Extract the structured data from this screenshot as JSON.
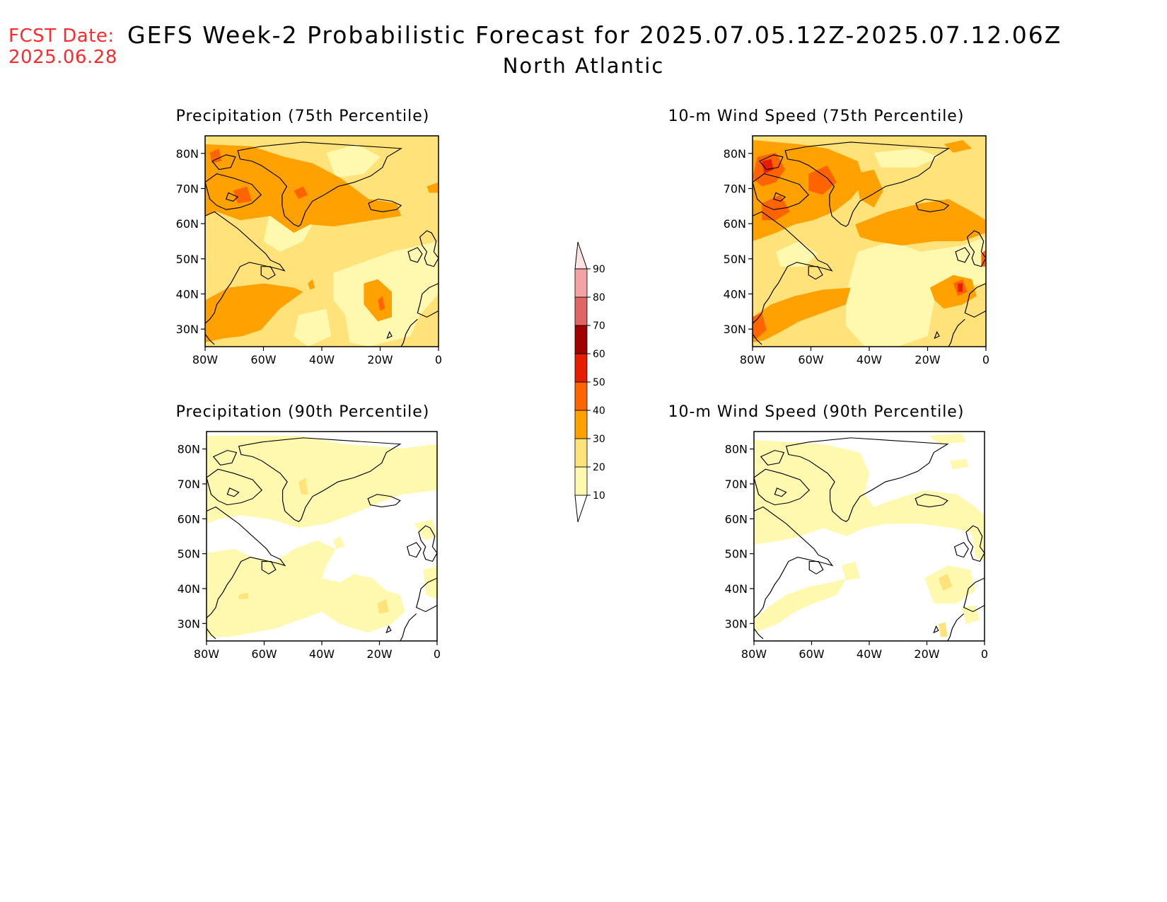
{
  "header": {
    "fcst_label": "FCST Date:",
    "fcst_date": "2025.06.28",
    "title": "GEFS Week-2 Probabilistic Forecast for 2025.07.05.12Z-2025.07.12.06Z",
    "subtitle": "North Atlantic"
  },
  "axes": {
    "lat_ticks": [
      "80N",
      "70N",
      "60N",
      "50N",
      "40N",
      "30N"
    ],
    "lon_ticks": [
      "80W",
      "60W",
      "40W",
      "20W",
      "0"
    ]
  },
  "colorbar": {
    "levels": [
      "10",
      "20",
      "30",
      "40",
      "50",
      "60",
      "70",
      "80",
      "90"
    ],
    "colors": [
      "#fff9b0",
      "#ffe27a",
      "#ffa100",
      "#ff6400",
      "#e61e00",
      "#a00000",
      "#e06666",
      "#f4a3a3",
      "#fde2e2"
    ]
  },
  "panels": [
    {
      "id": "precip-75",
      "title": "Precipitation (75th Percentile)"
    },
    {
      "id": "wind-75",
      "title": "10-m Wind Speed (75th Percentile)"
    },
    {
      "id": "precip-90",
      "title": "Precipitation (90th Percentile)"
    },
    {
      "id": "wind-90",
      "title": "10-m Wind Speed (90th Percentile)"
    }
  ]
}
